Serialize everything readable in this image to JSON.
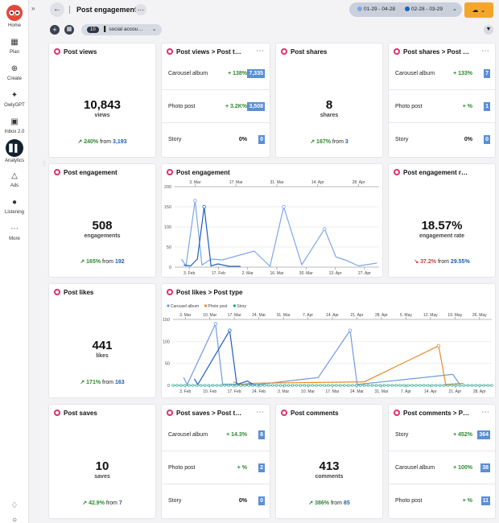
{
  "nav": {
    "items": [
      {
        "label": "Home",
        "icon": "owl-logo-icon"
      },
      {
        "label": "Plan",
        "icon": "calendar-icon"
      },
      {
        "label": "Create",
        "icon": "plus-circle-icon"
      },
      {
        "label": "OwlyGPT",
        "icon": "sparkles-icon"
      },
      {
        "label": "Inbox 2.0",
        "icon": "inbox-icon"
      },
      {
        "label": "Analytics",
        "icon": "bar-chart-icon",
        "active": true
      },
      {
        "label": "Ads",
        "icon": "megaphone-icon"
      },
      {
        "label": "Listening",
        "icon": "lightbulb-icon"
      },
      {
        "label": "More",
        "icon": "ellipsis-icon"
      }
    ],
    "collapse_glyph": "»"
  },
  "header": {
    "title": "Post engagement",
    "more_glyph": "…",
    "date_range_1": "01-29 - 04-28",
    "date_range_2": "02-28 - 03-29",
    "range_1_color": "#7da6e8",
    "range_2_color": "#1e5fbf"
  },
  "filters": {
    "account_count": "10",
    "accounts_label": "social accou…"
  },
  "colors": {
    "accent": "#f4a62a",
    "instagram": "#e1306c",
    "positive": "#2c8a2e",
    "negative": "#d13b3b",
    "value_badge": "#5a8ed8"
  },
  "cards": {
    "views": {
      "title": "Post views",
      "value": "10,843",
      "unit": "views",
      "change": "240%",
      "from_label": "from",
      "base": "3,193"
    },
    "views_type": {
      "title": "Post views > Post t…",
      "rows": [
        {
          "name": "Carousel album",
          "change": "+ 138%",
          "value": "7,335"
        },
        {
          "name": "Photo post",
          "change": "+ 3.2K%",
          "value": "3,508"
        },
        {
          "name": "Story",
          "change": "0%",
          "value": "0"
        }
      ]
    },
    "shares": {
      "title": "Post shares",
      "value": "8",
      "unit": "shares",
      "change": "167%",
      "from_label": "from",
      "base": "3"
    },
    "shares_type": {
      "title": "Post shares > Post …",
      "rows": [
        {
          "name": "Carousel album",
          "change": "+ 133%",
          "value": "7"
        },
        {
          "name": "Photo post",
          "change": "+ %",
          "value": "1"
        },
        {
          "name": "Story",
          "change": "0%",
          "value": "0"
        }
      ]
    },
    "engagement": {
      "title": "Post engagement",
      "value": "508",
      "unit": "engagements",
      "change": "165%",
      "from_label": "from",
      "base": "192"
    },
    "engagement_chart": {
      "title": "Post engagement"
    },
    "engagement_rate": {
      "title": "Post engagement r…",
      "value": "18.57%",
      "unit": "engagement rate",
      "change": "37.2%",
      "from_label": "from",
      "base": "29.55%"
    },
    "likes": {
      "title": "Post likes",
      "value": "441",
      "unit": "likes",
      "change": "171%",
      "from_label": "from",
      "base": "163"
    },
    "likes_chart": {
      "title": "Post likes > Post type"
    },
    "saves": {
      "title": "Post saves",
      "value": "10",
      "unit": "saves",
      "change": "42.9%",
      "from_label": "from",
      "base": "7"
    },
    "saves_type": {
      "title": "Post saves > Post t…",
      "rows": [
        {
          "name": "Carousel album",
          "change": "+ 14.3%",
          "value": "8"
        },
        {
          "name": "Photo post",
          "change": "+ %",
          "value": "2"
        },
        {
          "name": "Story",
          "change": "0%",
          "value": "0"
        }
      ]
    },
    "comments": {
      "title": "Post comments",
      "value": "413",
      "unit": "comments",
      "change": "386%",
      "from_label": "from",
      "base": "85"
    },
    "comments_type": {
      "title": "Post comments > P…",
      "rows": [
        {
          "name": "Story",
          "change": "+ 452%",
          "value": "364"
        },
        {
          "name": "Carousel album",
          "change": "+ 100%",
          "value": "38"
        },
        {
          "name": "Photo post",
          "change": "+ %",
          "value": "11"
        }
      ]
    }
  },
  "chart_data": [
    {
      "type": "line",
      "title": "Post engagement",
      "ylim": [
        0,
        200
      ],
      "yticks": [
        0,
        50,
        100,
        150,
        200
      ],
      "top_ticks": [
        "3. Mar",
        "17. Mar",
        "31. Mar",
        "14. Apr",
        "28. Apr"
      ],
      "bottom_ticks": [
        "3. Feb",
        "17. Feb",
        "2. Mar",
        "16. Mar",
        "30. Mar",
        "13. Apr",
        "27. Apr"
      ],
      "x_start": "2024-01-29",
      "x_end": "2024-04-28",
      "series": [
        {
          "color": "#7da6e8",
          "points": [
            [
              "2024-02-01",
              20
            ],
            [
              "2024-02-03",
              3
            ],
            [
              "2024-02-07",
              165
            ],
            [
              "2024-02-10",
              5
            ],
            [
              "2024-02-14",
              20
            ],
            [
              "2024-02-19",
              18
            ],
            [
              "2024-03-04",
              40
            ],
            [
              "2024-03-11",
              2
            ],
            [
              "2024-03-17",
              150
            ],
            [
              "2024-03-25",
              6
            ],
            [
              "2024-04-04",
              95
            ],
            [
              "2024-04-09",
              25
            ],
            [
              "2024-04-13",
              18
            ],
            [
              "2024-04-19",
              3
            ],
            [
              "2024-04-27",
              10
            ]
          ]
        },
        {
          "color": "#1e5fbf",
          "points": [
            [
              "2024-02-02",
              5
            ],
            [
              "2024-02-05",
              3
            ],
            [
              "2024-02-08",
              20
            ],
            [
              "2024-02-11",
              150
            ],
            [
              "2024-02-14",
              3
            ],
            [
              "2024-02-17",
              8
            ],
            [
              "2024-02-22",
              2
            ],
            [
              "2024-02-27",
              2
            ]
          ]
        }
      ]
    },
    {
      "type": "line",
      "title": "Post likes > Post type",
      "ylim": [
        0,
        150
      ],
      "yticks": [
        0,
        50,
        100,
        150
      ],
      "legend": [
        "Carousel album",
        "Photo post",
        "Story"
      ],
      "top_ticks": [
        "3. Mar",
        "10. Mar",
        "17. Mar",
        "24. Mar",
        "31. Mar",
        "7. Apr",
        "14. Apr",
        "21. Apr",
        "28. Apr",
        "5. May",
        "12. May",
        "19. May",
        "26. May"
      ],
      "bottom_ticks": [
        "3. Feb",
        "10. Feb",
        "17. Feb",
        "24. Feb",
        "3. Mar",
        "10. Mar",
        "17. Mar",
        "24. Mar",
        "31. Mar",
        "7. Apr",
        "14. Apr",
        "21. Apr",
        "28. Apr"
      ],
      "x_start": "2024-01-29",
      "x_end": "2024-04-28",
      "series": [
        {
          "name": "Carousel album",
          "color": "#6f9be0",
          "points": [
            [
              "2024-02-01",
              18
            ],
            [
              "2024-02-02",
              2
            ],
            [
              "2024-02-10",
              140
            ],
            [
              "2024-02-12",
              3
            ],
            [
              "2024-02-22",
              2
            ],
            [
              "2024-03-10",
              18
            ],
            [
              "2024-03-19",
              125
            ],
            [
              "2024-03-21",
              2
            ],
            [
              "2024-04-17",
              25
            ],
            [
              "2024-04-19",
              2
            ]
          ]
        },
        {
          "name": "Photo post",
          "color": "#e8892a",
          "points": [
            [
              "2024-02-15",
              8
            ],
            [
              "2024-02-17",
              2
            ],
            [
              "2024-02-20",
              5
            ],
            [
              "2024-03-23",
              8
            ],
            [
              "2024-04-13",
              90
            ],
            [
              "2024-04-15",
              2
            ],
            [
              "2024-04-20",
              5
            ]
          ]
        },
        {
          "name": "Story",
          "color": "#16a085",
          "points": [
            [
              "2024-01-29",
              0
            ],
            [
              "2024-04-28",
              0
            ]
          ]
        },
        {
          "name": "",
          "color": "#1e5fbf",
          "points": [
            [
              "2024-02-04",
              15
            ],
            [
              "2024-02-05",
              2
            ],
            [
              "2024-02-14",
              125
            ],
            [
              "2024-02-16",
              2
            ],
            [
              "2024-02-19",
              10
            ],
            [
              "2024-02-21",
              0
            ]
          ]
        }
      ]
    }
  ]
}
